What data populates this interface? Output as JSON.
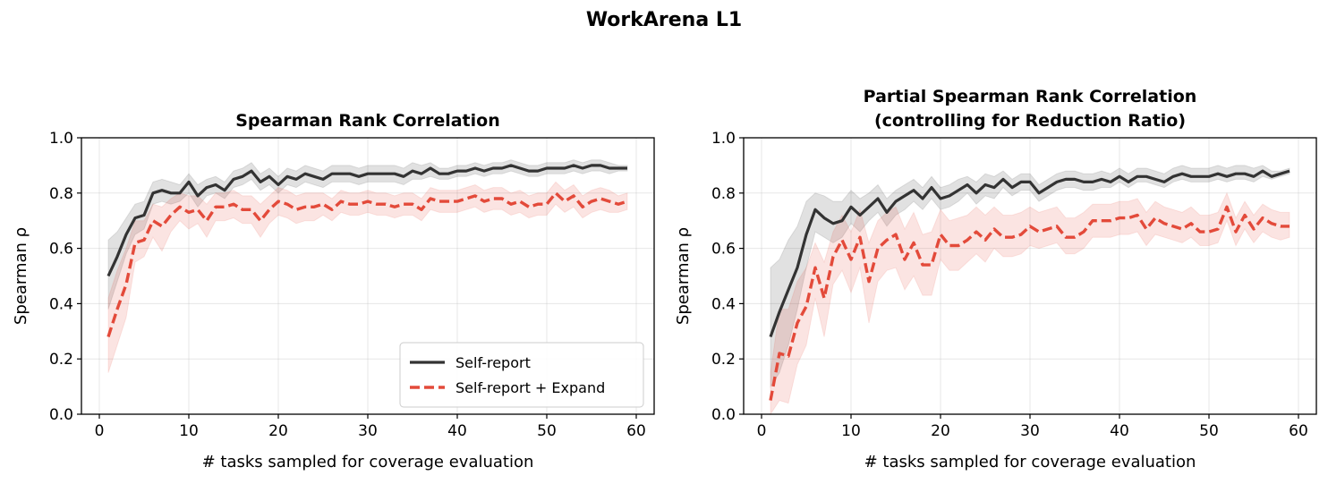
{
  "figure": {
    "suptitle": "WorkArena L1"
  },
  "chart_data": [
    {
      "type": "line",
      "title": "Spearman Rank Correlation",
      "title_lines": [
        "Spearman Rank Correlation"
      ],
      "xlabel": "# tasks sampled for coverage evaluation",
      "ylabel": "Spearman ρ",
      "xlim": [
        -2.0,
        62.0
      ],
      "ylim": [
        0.0,
        1.0
      ],
      "xticks": [
        0,
        10,
        20,
        30,
        40,
        50,
        60
      ],
      "yticks": [
        0.0,
        0.2,
        0.4,
        0.6,
        0.8,
        1.0
      ],
      "xtick_labels": [
        "0",
        "10",
        "20",
        "30",
        "40",
        "50",
        "60"
      ],
      "ytick_labels": [
        "0.0",
        "0.2",
        "0.4",
        "0.6",
        "0.8",
        "1.0"
      ],
      "grid": true,
      "legend_position": "lower-right",
      "x": [
        1,
        2,
        3,
        4,
        5,
        6,
        7,
        8,
        9,
        10,
        11,
        12,
        13,
        14,
        15,
        16,
        17,
        18,
        19,
        20,
        21,
        22,
        23,
        24,
        25,
        26,
        27,
        28,
        29,
        30,
        31,
        32,
        33,
        34,
        35,
        36,
        37,
        38,
        39,
        40,
        41,
        42,
        43,
        44,
        45,
        46,
        47,
        48,
        49,
        50,
        51,
        52,
        53,
        54,
        55,
        56,
        57,
        58,
        59
      ],
      "series": [
        {
          "name": "Self-report",
          "color": "#333333",
          "style": "solid",
          "values": [
            0.5,
            0.57,
            0.65,
            0.71,
            0.72,
            0.8,
            0.81,
            0.8,
            0.8,
            0.84,
            0.79,
            0.82,
            0.83,
            0.81,
            0.85,
            0.86,
            0.88,
            0.84,
            0.86,
            0.83,
            0.86,
            0.85,
            0.87,
            0.86,
            0.85,
            0.87,
            0.87,
            0.87,
            0.86,
            0.87,
            0.87,
            0.87,
            0.87,
            0.86,
            0.88,
            0.87,
            0.89,
            0.87,
            0.87,
            0.88,
            0.88,
            0.89,
            0.88,
            0.89,
            0.89,
            0.9,
            0.89,
            0.88,
            0.88,
            0.89,
            0.89,
            0.89,
            0.9,
            0.89,
            0.9,
            0.9,
            0.89,
            0.89,
            0.89
          ],
          "lower": [
            0.38,
            0.48,
            0.58,
            0.65,
            0.67,
            0.76,
            0.77,
            0.76,
            0.77,
            0.8,
            0.75,
            0.79,
            0.8,
            0.78,
            0.82,
            0.83,
            0.85,
            0.81,
            0.83,
            0.8,
            0.83,
            0.82,
            0.84,
            0.83,
            0.82,
            0.84,
            0.84,
            0.84,
            0.83,
            0.84,
            0.84,
            0.84,
            0.84,
            0.83,
            0.85,
            0.85,
            0.86,
            0.85,
            0.85,
            0.86,
            0.86,
            0.87,
            0.86,
            0.87,
            0.87,
            0.88,
            0.87,
            0.86,
            0.86,
            0.87,
            0.87,
            0.87,
            0.88,
            0.87,
            0.88,
            0.88,
            0.87,
            0.88,
            0.88
          ],
          "upper": [
            0.63,
            0.66,
            0.71,
            0.76,
            0.77,
            0.84,
            0.85,
            0.84,
            0.83,
            0.87,
            0.83,
            0.85,
            0.86,
            0.84,
            0.88,
            0.89,
            0.91,
            0.87,
            0.89,
            0.86,
            0.89,
            0.88,
            0.9,
            0.89,
            0.88,
            0.9,
            0.9,
            0.9,
            0.89,
            0.9,
            0.9,
            0.9,
            0.9,
            0.89,
            0.91,
            0.9,
            0.91,
            0.89,
            0.89,
            0.9,
            0.9,
            0.91,
            0.9,
            0.91,
            0.91,
            0.92,
            0.91,
            0.9,
            0.9,
            0.91,
            0.91,
            0.91,
            0.92,
            0.91,
            0.92,
            0.92,
            0.91,
            0.9,
            0.9
          ]
        },
        {
          "name": "Self-report + Expand",
          "color": "#e34a3a",
          "style": "dashed",
          "values": [
            0.28,
            0.38,
            0.47,
            0.62,
            0.63,
            0.7,
            0.68,
            0.72,
            0.75,
            0.73,
            0.74,
            0.7,
            0.75,
            0.75,
            0.76,
            0.74,
            0.74,
            0.7,
            0.74,
            0.77,
            0.76,
            0.74,
            0.75,
            0.75,
            0.76,
            0.74,
            0.77,
            0.76,
            0.76,
            0.77,
            0.76,
            0.76,
            0.75,
            0.76,
            0.76,
            0.74,
            0.78,
            0.77,
            0.77,
            0.77,
            0.78,
            0.79,
            0.77,
            0.78,
            0.78,
            0.76,
            0.77,
            0.75,
            0.76,
            0.76,
            0.8,
            0.77,
            0.79,
            0.75,
            0.77,
            0.78,
            0.77,
            0.76,
            0.77
          ],
          "lower": [
            0.15,
            0.25,
            0.35,
            0.55,
            0.57,
            0.64,
            0.59,
            0.66,
            0.7,
            0.67,
            0.69,
            0.64,
            0.7,
            0.7,
            0.71,
            0.69,
            0.69,
            0.64,
            0.69,
            0.72,
            0.71,
            0.69,
            0.7,
            0.7,
            0.72,
            0.7,
            0.73,
            0.72,
            0.72,
            0.73,
            0.72,
            0.72,
            0.71,
            0.72,
            0.72,
            0.7,
            0.74,
            0.73,
            0.73,
            0.73,
            0.74,
            0.75,
            0.73,
            0.74,
            0.74,
            0.72,
            0.73,
            0.71,
            0.72,
            0.72,
            0.76,
            0.73,
            0.75,
            0.71,
            0.73,
            0.74,
            0.73,
            0.73,
            0.74
          ],
          "upper": [
            0.42,
            0.52,
            0.6,
            0.7,
            0.7,
            0.76,
            0.75,
            0.78,
            0.8,
            0.79,
            0.79,
            0.76,
            0.8,
            0.8,
            0.81,
            0.79,
            0.79,
            0.76,
            0.79,
            0.82,
            0.81,
            0.79,
            0.8,
            0.8,
            0.8,
            0.78,
            0.81,
            0.8,
            0.8,
            0.81,
            0.8,
            0.8,
            0.79,
            0.8,
            0.8,
            0.78,
            0.82,
            0.81,
            0.81,
            0.81,
            0.82,
            0.83,
            0.81,
            0.82,
            0.82,
            0.8,
            0.81,
            0.79,
            0.8,
            0.8,
            0.84,
            0.81,
            0.83,
            0.79,
            0.81,
            0.82,
            0.81,
            0.79,
            0.8
          ]
        }
      ]
    },
    {
      "type": "line",
      "title": "Partial Spearman Rank Correlation\n(controlling for Reduction Ratio)",
      "title_lines": [
        "Partial Spearman Rank Correlation",
        "(controlling for Reduction Ratio)"
      ],
      "xlabel": "# tasks sampled for coverage evaluation",
      "ylabel": "Spearman ρ",
      "xlim": [
        -2.0,
        62.0
      ],
      "ylim": [
        0.0,
        1.0
      ],
      "xticks": [
        0,
        10,
        20,
        30,
        40,
        50,
        60
      ],
      "yticks": [
        0.0,
        0.2,
        0.4,
        0.6,
        0.8,
        1.0
      ],
      "xtick_labels": [
        "0",
        "10",
        "20",
        "30",
        "40",
        "50",
        "60"
      ],
      "ytick_labels": [
        "0.0",
        "0.2",
        "0.4",
        "0.6",
        "0.8",
        "1.0"
      ],
      "grid": true,
      "x": [
        1,
        2,
        3,
        4,
        5,
        6,
        7,
        8,
        9,
        10,
        11,
        12,
        13,
        14,
        15,
        16,
        17,
        18,
        19,
        20,
        21,
        22,
        23,
        24,
        25,
        26,
        27,
        28,
        29,
        30,
        31,
        32,
        33,
        34,
        35,
        36,
        37,
        38,
        39,
        40,
        41,
        42,
        43,
        44,
        45,
        46,
        47,
        48,
        49,
        50,
        51,
        52,
        53,
        54,
        55,
        56,
        57,
        58,
        59
      ],
      "series": [
        {
          "name": "Self-report",
          "color": "#333333",
          "style": "solid",
          "values": [
            0.28,
            0.37,
            0.45,
            0.53,
            0.65,
            0.74,
            0.71,
            0.69,
            0.7,
            0.75,
            0.72,
            0.75,
            0.78,
            0.73,
            0.77,
            0.79,
            0.81,
            0.78,
            0.82,
            0.78,
            0.79,
            0.81,
            0.83,
            0.8,
            0.83,
            0.82,
            0.85,
            0.82,
            0.84,
            0.84,
            0.8,
            0.82,
            0.84,
            0.85,
            0.85,
            0.84,
            0.84,
            0.85,
            0.84,
            0.86,
            0.84,
            0.86,
            0.86,
            0.85,
            0.84,
            0.86,
            0.87,
            0.86,
            0.86,
            0.86,
            0.87,
            0.86,
            0.87,
            0.87,
            0.86,
            0.88,
            0.86,
            0.87,
            0.88
          ],
          "lower": [
            0.1,
            0.15,
            0.25,
            0.38,
            0.53,
            0.66,
            0.64,
            0.62,
            0.64,
            0.69,
            0.66,
            0.7,
            0.73,
            0.68,
            0.72,
            0.74,
            0.77,
            0.74,
            0.78,
            0.74,
            0.75,
            0.77,
            0.8,
            0.76,
            0.79,
            0.78,
            0.82,
            0.79,
            0.81,
            0.81,
            0.77,
            0.79,
            0.81,
            0.82,
            0.82,
            0.81,
            0.81,
            0.82,
            0.82,
            0.84,
            0.82,
            0.84,
            0.84,
            0.83,
            0.82,
            0.84,
            0.85,
            0.84,
            0.84,
            0.84,
            0.85,
            0.84,
            0.85,
            0.85,
            0.84,
            0.86,
            0.85,
            0.86,
            0.87
          ],
          "upper": [
            0.53,
            0.56,
            0.63,
            0.68,
            0.77,
            0.8,
            0.79,
            0.77,
            0.77,
            0.81,
            0.78,
            0.8,
            0.83,
            0.78,
            0.81,
            0.83,
            0.85,
            0.82,
            0.86,
            0.82,
            0.83,
            0.85,
            0.86,
            0.84,
            0.87,
            0.86,
            0.88,
            0.85,
            0.87,
            0.87,
            0.83,
            0.85,
            0.87,
            0.88,
            0.88,
            0.87,
            0.87,
            0.88,
            0.87,
            0.89,
            0.87,
            0.89,
            0.89,
            0.88,
            0.87,
            0.89,
            0.9,
            0.89,
            0.89,
            0.89,
            0.9,
            0.89,
            0.9,
            0.9,
            0.89,
            0.9,
            0.88,
            0.88,
            0.89
          ]
        },
        {
          "name": "Self-report + Expand",
          "color": "#e34a3a",
          "style": "dashed",
          "values": [
            0.05,
            0.22,
            0.21,
            0.33,
            0.39,
            0.53,
            0.42,
            0.57,
            0.63,
            0.56,
            0.64,
            0.48,
            0.6,
            0.63,
            0.65,
            0.56,
            0.62,
            0.54,
            0.54,
            0.65,
            0.61,
            0.61,
            0.63,
            0.66,
            0.63,
            0.67,
            0.64,
            0.64,
            0.65,
            0.68,
            0.66,
            0.67,
            0.68,
            0.64,
            0.64,
            0.66,
            0.7,
            0.7,
            0.7,
            0.71,
            0.71,
            0.72,
            0.67,
            0.71,
            0.69,
            0.68,
            0.67,
            0.69,
            0.66,
            0.66,
            0.67,
            0.75,
            0.66,
            0.72,
            0.67,
            0.71,
            0.69,
            0.68,
            0.68
          ],
          "lower": [
            0.0,
            0.05,
            0.04,
            0.18,
            0.25,
            0.42,
            0.28,
            0.47,
            0.52,
            0.44,
            0.53,
            0.33,
            0.48,
            0.52,
            0.53,
            0.45,
            0.5,
            0.43,
            0.43,
            0.56,
            0.52,
            0.52,
            0.55,
            0.58,
            0.55,
            0.6,
            0.57,
            0.57,
            0.58,
            0.61,
            0.6,
            0.61,
            0.62,
            0.58,
            0.58,
            0.6,
            0.64,
            0.64,
            0.64,
            0.65,
            0.65,
            0.66,
            0.61,
            0.65,
            0.64,
            0.63,
            0.62,
            0.64,
            0.61,
            0.61,
            0.62,
            0.7,
            0.61,
            0.67,
            0.62,
            0.66,
            0.64,
            0.63,
            0.64
          ],
          "upper": [
            0.15,
            0.38,
            0.38,
            0.48,
            0.53,
            0.62,
            0.55,
            0.66,
            0.72,
            0.66,
            0.74,
            0.62,
            0.7,
            0.73,
            0.75,
            0.67,
            0.73,
            0.65,
            0.66,
            0.74,
            0.7,
            0.71,
            0.72,
            0.75,
            0.72,
            0.75,
            0.72,
            0.72,
            0.73,
            0.75,
            0.73,
            0.74,
            0.75,
            0.71,
            0.71,
            0.73,
            0.76,
            0.76,
            0.76,
            0.77,
            0.77,
            0.78,
            0.73,
            0.77,
            0.75,
            0.74,
            0.73,
            0.75,
            0.72,
            0.72,
            0.73,
            0.8,
            0.71,
            0.77,
            0.72,
            0.76,
            0.74,
            0.73,
            0.73
          ]
        }
      ]
    }
  ]
}
